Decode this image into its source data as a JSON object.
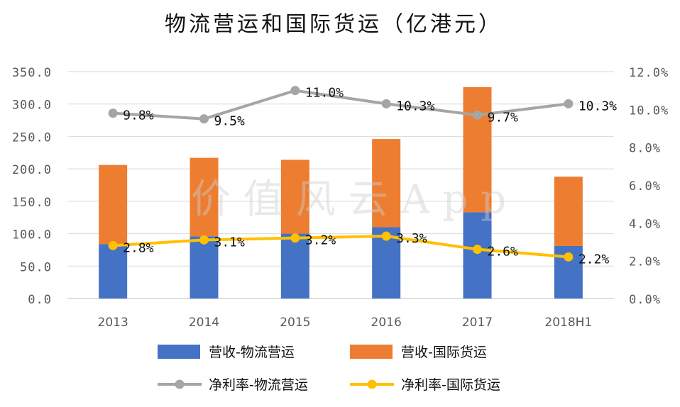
{
  "chart_data": {
    "type": "bar+line",
    "title": "物流营运和国际货运（亿港元）",
    "categories": [
      "2013",
      "2014",
      "2015",
      "2016",
      "2017",
      "2018H1"
    ],
    "y_left": {
      "ylim": [
        0,
        350
      ],
      "ticks": [
        0,
        50,
        100,
        150,
        200,
        250,
        300,
        350
      ],
      "tick_labels": [
        "0.0",
        "50.0",
        "100.0",
        "150.0",
        "200.0",
        "250.0",
        "300.0",
        "350.0"
      ]
    },
    "y_right": {
      "ylim": [
        0,
        12
      ],
      "ticks": [
        0,
        2,
        4,
        6,
        8,
        10,
        12
      ],
      "tick_labels": [
        "0.0%",
        "2.0%",
        "4.0%",
        "6.0%",
        "8.0%",
        "10.0%",
        "12.0%"
      ]
    },
    "bar_series": [
      {
        "name": "营收-物流营运",
        "color": "#4472C4",
        "values": [
          84,
          96,
          100,
          110,
          133,
          81
        ]
      },
      {
        "name": "营收-国际货运",
        "color": "#ED7D31",
        "values": [
          122,
          121,
          114,
          136,
          193,
          107
        ]
      }
    ],
    "line_series": [
      {
        "name": "净利率-物流营运",
        "color": "#A5A5A5",
        "axis": "right",
        "values": [
          9.8,
          9.5,
          11.0,
          10.3,
          9.7,
          10.3
        ],
        "labels": [
          "9.8%",
          "9.5%",
          "11.0%",
          "10.3%",
          "9.7%",
          "10.3%"
        ]
      },
      {
        "name": "净利率-国际货运",
        "color": "#FFC000",
        "axis": "right",
        "values": [
          2.8,
          3.1,
          3.2,
          3.3,
          2.6,
          2.2
        ],
        "labels": [
          "2.8%",
          "3.1%",
          "3.2%",
          "3.3%",
          "2.6%",
          "2.2%"
        ]
      }
    ],
    "legend": [
      "营收-物流营运",
      "营收-国际货运",
      "净利率-物流营运",
      "净利率-国际货运"
    ],
    "legend_position": "bottom",
    "grid": true,
    "watermark": "价值风云App"
  }
}
